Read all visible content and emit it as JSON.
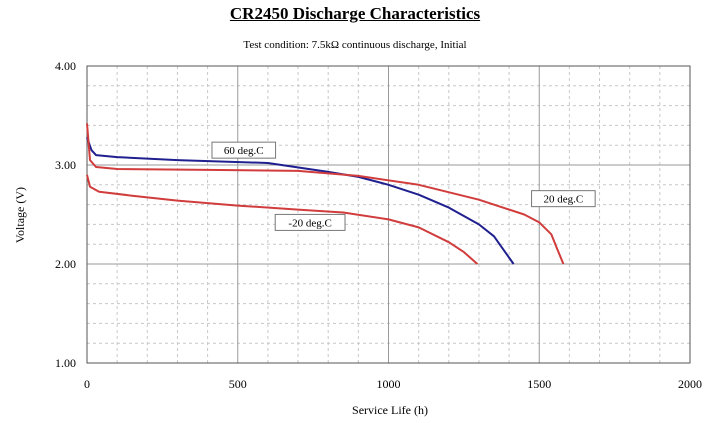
{
  "chart_data": {
    "type": "line",
    "title": "CR2450 Discharge Characteristics",
    "subtitle": "Test condition: 7.5kΩ continuous discharge, Initial",
    "xlabel": "Service Life (h)",
    "ylabel": "Voltage (V)",
    "xlim": [
      0,
      2000
    ],
    "ylim": [
      1.0,
      4.0
    ],
    "x_ticks": [
      "0",
      "500",
      "1000",
      "1500",
      "2000"
    ],
    "y_ticks": [
      "1.00",
      "2.00",
      "3.00",
      "4.00"
    ],
    "grid": true,
    "series": [
      {
        "name": "60 deg.C",
        "color": "#1f1f8f",
        "points": [
          [
            0,
            3.28
          ],
          [
            15,
            3.15
          ],
          [
            30,
            3.1
          ],
          [
            100,
            3.08
          ],
          [
            300,
            3.05
          ],
          [
            600,
            3.02
          ],
          [
            800,
            2.93
          ],
          [
            900,
            2.88
          ],
          [
            1000,
            2.8
          ],
          [
            1100,
            2.7
          ],
          [
            1200,
            2.57
          ],
          [
            1300,
            2.4
          ],
          [
            1350,
            2.28
          ],
          [
            1380,
            2.15
          ],
          [
            1415,
            2.0
          ]
        ]
      },
      {
        "name": "20 deg.C",
        "color": "#d13c3c",
        "points": [
          [
            0,
            3.42
          ],
          [
            10,
            3.05
          ],
          [
            30,
            2.98
          ],
          [
            100,
            2.96
          ],
          [
            400,
            2.95
          ],
          [
            700,
            2.94
          ],
          [
            900,
            2.89
          ],
          [
            1100,
            2.8
          ],
          [
            1300,
            2.65
          ],
          [
            1450,
            2.5
          ],
          [
            1500,
            2.42
          ],
          [
            1540,
            2.3
          ],
          [
            1560,
            2.15
          ],
          [
            1580,
            2.0
          ]
        ]
      },
      {
        "name": "-20 deg.C",
        "color": "#d13c3c",
        "points": [
          [
            0,
            2.9
          ],
          [
            10,
            2.78
          ],
          [
            40,
            2.73
          ],
          [
            150,
            2.69
          ],
          [
            300,
            2.64
          ],
          [
            500,
            2.59
          ],
          [
            700,
            2.55
          ],
          [
            850,
            2.52
          ],
          [
            1000,
            2.45
          ],
          [
            1100,
            2.37
          ],
          [
            1200,
            2.22
          ],
          [
            1250,
            2.12
          ],
          [
            1295,
            2.0
          ]
        ]
      }
    ],
    "annotations": [
      {
        "text": "60 deg.C",
        "x": 520,
        "y": 3.15
      },
      {
        "text": "20 deg.C",
        "x": 1580,
        "y": 2.66
      },
      {
        "text": "-20 deg.C",
        "x": 740,
        "y": 2.42
      }
    ]
  }
}
